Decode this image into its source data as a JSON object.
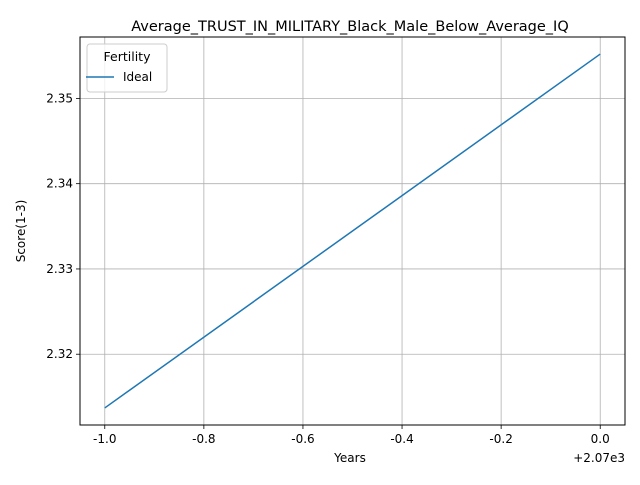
{
  "chart_data": {
    "type": "line",
    "title": "Average_TRUST_IN_MILITARY_Black_Male_Below_Average_IQ",
    "xlabel": "Years",
    "ylabel": "Score(1-3)",
    "x_offset_label": "+2.07e3",
    "x_ticks": [
      "-1.0",
      "-0.8",
      "-0.6",
      "-0.4",
      "-0.2",
      "0.0"
    ],
    "y_ticks": [
      "2.32",
      "2.33",
      "2.34",
      "2.35"
    ],
    "xlim": [
      2068.95,
      2070.05
    ],
    "ylim": [
      2.3117,
      2.3572
    ],
    "grid": true,
    "legend": {
      "title": "Fertility",
      "placement": "top-left"
    },
    "series": [
      {
        "name": "Ideal",
        "color": "#1f77b4",
        "x": [
          2069,
          2070
        ],
        "y": [
          2.3137,
          2.3552
        ]
      }
    ]
  }
}
